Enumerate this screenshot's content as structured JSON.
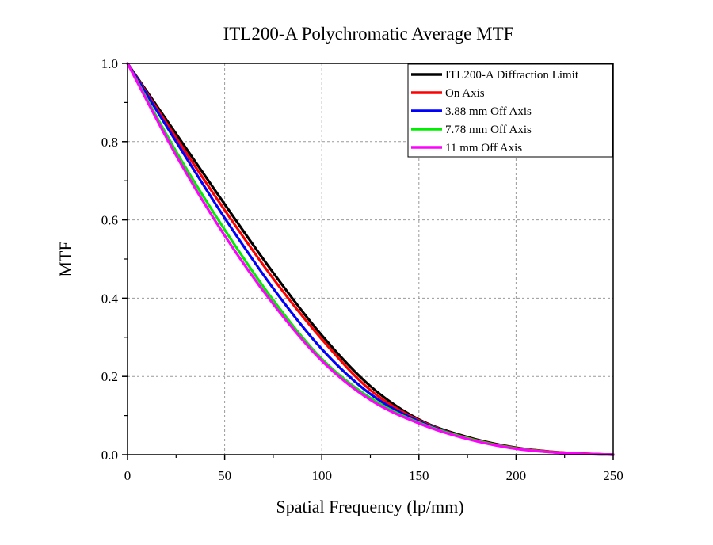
{
  "chart_data": {
    "type": "line",
    "title": "ITL200-A Polychromatic Average MTF",
    "xlabel": "Spatial Frequency (lp/mm)",
    "ylabel": "MTF",
    "xlim": [
      0,
      250
    ],
    "ylim": [
      0,
      1.0
    ],
    "xticks": [
      "0",
      "50",
      "100",
      "150",
      "200",
      "250"
    ],
    "yticks": [
      "0.0",
      "0.2",
      "0.4",
      "0.6",
      "0.8",
      "1.0"
    ],
    "xtick_values": [
      0,
      50,
      100,
      150,
      200,
      250
    ],
    "ytick_values": [
      0,
      0.2,
      0.4,
      0.6,
      0.8,
      1.0
    ],
    "grid": true,
    "legend_position": "top-right",
    "series": [
      {
        "name": "ITL200-A Diffraction Limit",
        "color": "#000000",
        "x": [
          0,
          25,
          50,
          75,
          100,
          125,
          150,
          175,
          200,
          225,
          250
        ],
        "y": [
          1.0,
          0.82,
          0.64,
          0.465,
          0.305,
          0.175,
          0.09,
          0.045,
          0.018,
          0.005,
          0.0
        ]
      },
      {
        "name": "On Axis",
        "color": "#ff0000",
        "x": [
          0,
          25,
          50,
          75,
          100,
          125,
          150,
          175,
          200,
          225,
          250
        ],
        "y": [
          1.0,
          0.81,
          0.625,
          0.45,
          0.295,
          0.165,
          0.088,
          0.043,
          0.017,
          0.005,
          0.0
        ]
      },
      {
        "name": "3.88 mm Off Axis",
        "color": "#0000ff",
        "x": [
          0,
          25,
          50,
          75,
          100,
          125,
          150,
          175,
          200,
          225,
          250
        ],
        "y": [
          1.0,
          0.8,
          0.605,
          0.425,
          0.27,
          0.155,
          0.085,
          0.042,
          0.016,
          0.004,
          0.0
        ]
      },
      {
        "name": "7.78 mm Off Axis",
        "color": "#00ee00",
        "x": [
          0,
          25,
          50,
          75,
          100,
          125,
          150,
          175,
          200,
          225,
          250
        ],
        "y": [
          1.0,
          0.775,
          0.575,
          0.395,
          0.245,
          0.145,
          0.082,
          0.042,
          0.016,
          0.004,
          0.0
        ]
      },
      {
        "name": "11 mm Off Axis",
        "color": "#ff00ff",
        "x": [
          0,
          25,
          50,
          75,
          100,
          125,
          150,
          175,
          200,
          225,
          250
        ],
        "y": [
          1.0,
          0.765,
          0.56,
          0.385,
          0.24,
          0.14,
          0.08,
          0.04,
          0.015,
          0.004,
          0.0
        ]
      }
    ]
  }
}
